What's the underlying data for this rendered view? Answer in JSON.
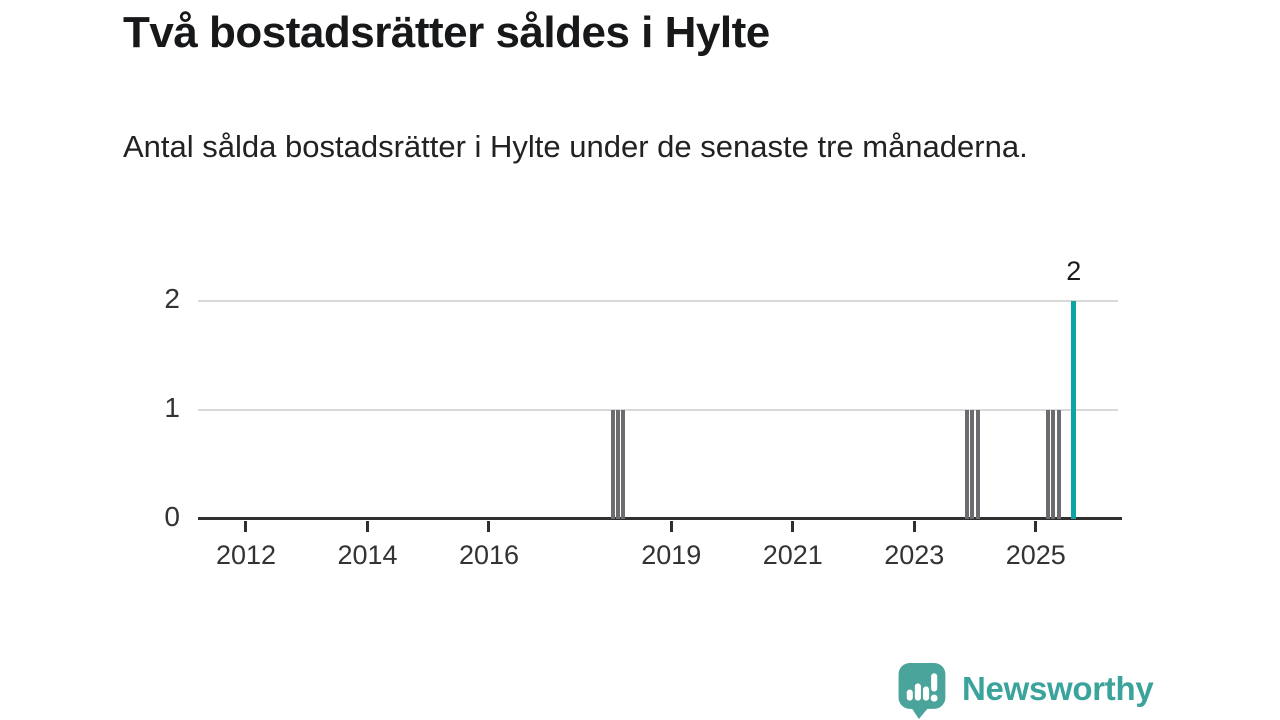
{
  "header": {
    "title": "Två bostadsrätter såldes i Hylte",
    "subtitle": "Antal sålda bostadsrätter i Hylte under de senaste tre månaderna."
  },
  "chart_data": {
    "type": "bar",
    "title": "Två bostadsrätter såldes i Hylte",
    "subtitle": "Antal sålda bostadsrätter i Hylte under de senaste tre månaderna.",
    "x_type": "month",
    "x_domain_years": [
      2011.2,
      2026.35
    ],
    "ylim": [
      0,
      2
    ],
    "yticks": [
      0,
      1,
      2
    ],
    "xticks": [
      2012,
      2014,
      2016,
      2019,
      2021,
      2023,
      2025
    ],
    "grid": "horizontal",
    "legend": "none",
    "default_value": 0,
    "bars": [
      {
        "month": "2018-01",
        "value": 1,
        "highlight": false
      },
      {
        "month": "2018-02",
        "value": 1,
        "highlight": false
      },
      {
        "month": "2018-03",
        "value": 1,
        "highlight": false
      },
      {
        "month": "2023-11",
        "value": 1,
        "highlight": false
      },
      {
        "month": "2023-12",
        "value": 1,
        "highlight": false
      },
      {
        "month": "2024-01",
        "value": 1,
        "highlight": false
      },
      {
        "month": "2025-03",
        "value": 1,
        "highlight": false
      },
      {
        "month": "2025-04",
        "value": 1,
        "highlight": false
      },
      {
        "month": "2025-05",
        "value": 1,
        "highlight": false
      },
      {
        "month": "2025-08",
        "value": 2,
        "highlight": true
      }
    ],
    "annotation": {
      "text": "2",
      "month": "2025-08"
    },
    "colors": {
      "bar_default": "#6b6b70",
      "bar_highlight": "#0fa3a3",
      "gridline": "#d9d9d9",
      "axis": "#2f2f2f",
      "tick_label": "#333333"
    }
  },
  "footer": {
    "brand": "Newsworthy",
    "logo_color": "#4aa49b",
    "brand_text_color": "#3aa39b",
    "logo_icon": "bar-chart-speech-bubble-icon"
  }
}
